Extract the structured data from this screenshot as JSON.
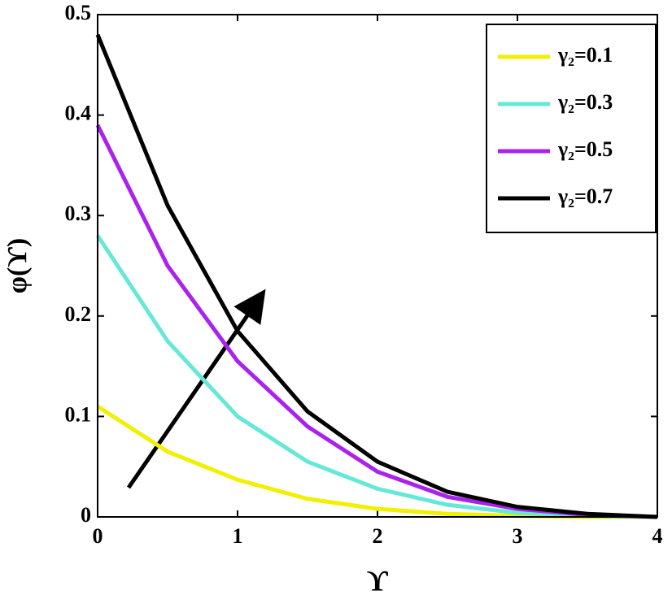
{
  "chart_data": {
    "type": "line",
    "x_label": "ϒ",
    "y_label": "φ(ϒ)",
    "x": [
      0,
      0.5,
      1,
      1.5,
      2,
      2.5,
      3,
      3.5,
      4
    ],
    "series": [
      {
        "name": "γ₂=0.1",
        "color": "#f0f000",
        "values": [
          0.11,
          0.065,
          0.037,
          0.018,
          0.008,
          0.003,
          0.001,
          0,
          0
        ]
      },
      {
        "name": "γ₂=0.3",
        "color": "#66e8d8",
        "values": [
          0.28,
          0.175,
          0.1,
          0.055,
          0.028,
          0.012,
          0.004,
          0.001,
          0
        ]
      },
      {
        "name": "γ₂=0.5",
        "color": "#aa22ee",
        "values": [
          0.39,
          0.25,
          0.155,
          0.09,
          0.045,
          0.02,
          0.008,
          0.002,
          0
        ]
      },
      {
        "name": "γ₂=0.7",
        "color": "#000000",
        "values": [
          0.48,
          0.31,
          0.185,
          0.105,
          0.055,
          0.025,
          0.01,
          0.003,
          0
        ]
      }
    ],
    "xlim": [
      0,
      4
    ],
    "xticks": [
      0,
      1,
      2,
      3,
      4
    ],
    "ylim": [
      0,
      0.5
    ],
    "yticks": [
      0,
      0.1,
      0.2,
      0.3,
      0.4,
      0.5
    ],
    "legend": "upper right"
  }
}
